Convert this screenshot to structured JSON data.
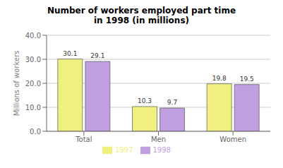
{
  "chart_data": {
    "type": "bar",
    "title": "Number of workers employed part time\nin 1998 (in millions)",
    "categories": [
      "Total",
      "Men",
      "Women"
    ],
    "series": [
      {
        "name": "1997",
        "color": "#f0f080",
        "values": [
          30.1,
          10.3,
          19.8
        ]
      },
      {
        "name": "1998",
        "color": "#c0a0e0",
        "values": [
          29.1,
          9.7,
          19.5
        ]
      }
    ],
    "ylabel": "Millions of workers",
    "ylim": [
      0,
      40
    ],
    "yticks": [
      {
        "value": 0,
        "label": "0.0"
      },
      {
        "value": 10,
        "label": "10.0"
      },
      {
        "value": 20,
        "label": "20.0"
      },
      {
        "value": 30,
        "label": "30.0"
      },
      {
        "value": 40,
        "label": "40.0"
      }
    ],
    "grid": true,
    "data_labels": true,
    "legend": "bottom"
  }
}
